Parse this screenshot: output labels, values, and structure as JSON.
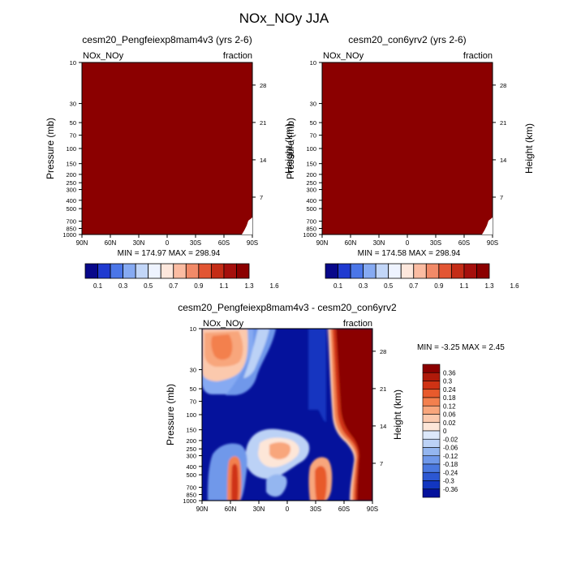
{
  "figure_title": "NOx_NOy JJA",
  "chart_data": [
    {
      "type": "heatmap",
      "title": "cesm20_Pengfeiexp8mam4v3 (yrs 2-6)",
      "left_label": "NOx_NOy",
      "right_label": "fraction",
      "ylabel": "Pressure (mb)",
      "ylabel_right": "Height (km)",
      "x_ticks": [
        "90N",
        "60N",
        "30N",
        "0",
        "30S",
        "60S",
        "90S"
      ],
      "y_ticks": [
        "10",
        "30",
        "50",
        "70",
        "100",
        "150",
        "200",
        "250",
        "300",
        "400",
        "500",
        "700",
        "850",
        "1000"
      ],
      "y_ticks_right": [
        "28",
        "21",
        "14",
        "7"
      ],
      "ylim": [
        1000,
        10
      ],
      "stats": "MIN = 174.97  MAX = 298.94",
      "min": 174.97,
      "max": 298.94,
      "field_color": "#8b0000",
      "colorbar_levels": [
        "0.1",
        "0.3",
        "0.5",
        "0.7",
        "0.9",
        "1.1",
        "1.3",
        "1.6"
      ],
      "colorbar_colors": [
        "#08088a",
        "#1f3ad0",
        "#4b76e8",
        "#86aaf2",
        "#c2d6f8",
        "#eef3fe",
        "#fde7dc",
        "#fbbca2",
        "#f18a68",
        "#e25533",
        "#c42c16",
        "#a50f0c",
        "#8b0000"
      ]
    },
    {
      "type": "heatmap",
      "title": "cesm20_con6yrv2 (yrs 2-6)",
      "left_label": "NOx_NOy",
      "right_label": "fraction",
      "ylabel": "Pressure (mb)",
      "ylabel_right": "Height (km)",
      "x_ticks": [
        "90N",
        "60N",
        "30N",
        "0",
        "30S",
        "60S",
        "90S"
      ],
      "y_ticks": [
        "10",
        "30",
        "50",
        "70",
        "100",
        "150",
        "200",
        "250",
        "300",
        "400",
        "500",
        "700",
        "850",
        "1000"
      ],
      "y_ticks_right": [
        "28",
        "21",
        "14",
        "7"
      ],
      "ylim": [
        1000,
        10
      ],
      "stats": "MIN = 174.58  MAX = 298.94",
      "min": 174.58,
      "max": 298.94,
      "field_color": "#8b0000",
      "colorbar_levels": [
        "0.1",
        "0.3",
        "0.5",
        "0.7",
        "0.9",
        "1.1",
        "1.3",
        "1.6"
      ],
      "colorbar_colors": [
        "#08088a",
        "#1f3ad0",
        "#4b76e8",
        "#86aaf2",
        "#c2d6f8",
        "#eef3fe",
        "#fde7dc",
        "#fbbca2",
        "#f18a68",
        "#e25533",
        "#c42c16",
        "#a50f0c",
        "#8b0000"
      ]
    },
    {
      "type": "heatmap",
      "title": "cesm20_Pengfeiexp8mam4v3 - cesm20_con6yrv2",
      "left_label": "NOx_NOy",
      "right_label": "fraction",
      "ylabel": "Pressure (mb)",
      "ylabel_right": "Height (km)",
      "x_ticks": [
        "90N",
        "60N",
        "30N",
        "0",
        "30S",
        "60S",
        "90S"
      ],
      "y_ticks": [
        "10",
        "30",
        "50",
        "70",
        "100",
        "150",
        "200",
        "250",
        "300",
        "400",
        "500",
        "700",
        "850",
        "1000"
      ],
      "y_ticks_right": [
        "28",
        "21",
        "14",
        "7"
      ],
      "ylim": [
        1000,
        10
      ],
      "stats": "MIN =  -3.25  MAX =   2.45",
      "min": -3.25,
      "max": 2.45,
      "colorbar_levels": [
        "0.36",
        "0.3",
        "0.24",
        "0.18",
        "0.12",
        "0.06",
        "0.02",
        "0",
        "-0.02",
        "-0.06",
        "-0.12",
        "-0.18",
        "-0.24",
        "-0.3",
        "-0.36"
      ],
      "colorbar_colors": [
        "#8b0000",
        "#b01a0a",
        "#cf3214",
        "#e85a2c",
        "#f3804e",
        "#f8a67c",
        "#fbc9ad",
        "#fde6d8",
        "#dce8fa",
        "#bcd2f6",
        "#94b6f0",
        "#6f98ea",
        "#4a78e0",
        "#2c57d2",
        "#1236c0",
        "#05129c"
      ]
    }
  ]
}
